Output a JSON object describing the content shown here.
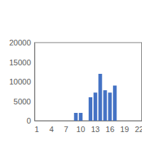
{
  "chart_data": {
    "type": "bar",
    "categories": [
      "1",
      null,
      null,
      "4",
      null,
      null,
      "7",
      null,
      null,
      "10",
      null,
      null,
      "13",
      null,
      null,
      "16",
      null,
      null,
      "19",
      null,
      null,
      "22"
    ],
    "values": [
      0,
      0,
      0,
      0,
      0,
      0,
      0,
      0,
      2000,
      2000,
      0,
      6000,
      7200,
      12000,
      7800,
      7200,
      9000,
      0,
      0,
      0,
      0,
      0
    ],
    "color": "#4472c4",
    "ylim": [
      0,
      20000
    ],
    "yticks": [
      0,
      5000,
      10000,
      15000,
      20000
    ],
    "grid": false
  }
}
